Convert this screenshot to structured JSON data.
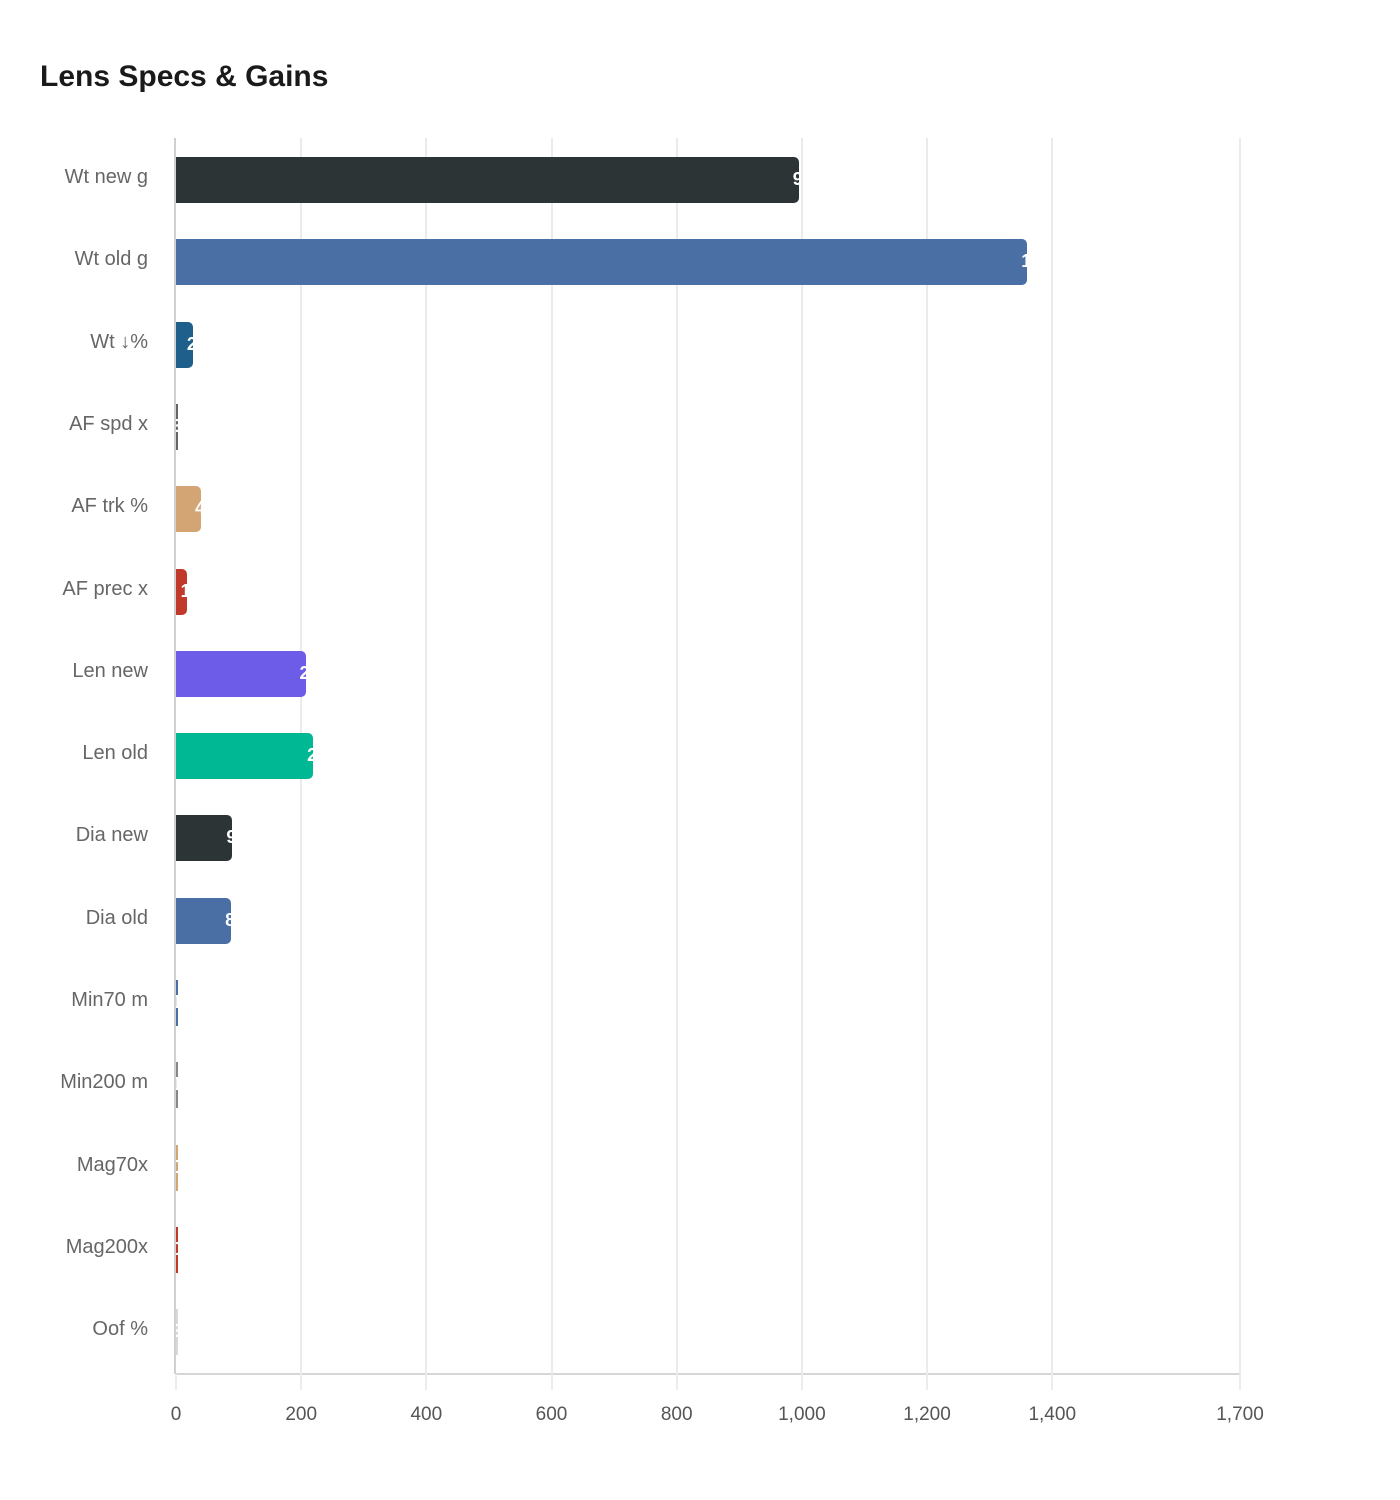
{
  "chart_data": {
    "type": "bar",
    "orientation": "horizontal",
    "title": "Lens Specs & Gains",
    "xlabel": "",
    "ylabel": "",
    "xlim": [
      0,
      1700
    ],
    "x_ticks": [
      "0",
      "200",
      "400",
      "600",
      "800",
      "1,000",
      "1,200",
      "1,400",
      "1,700"
    ],
    "grid": true,
    "legend": null,
    "categories": [
      "Wt new g",
      "Wt old g",
      "Wt ↓%",
      "AF spd x",
      "AF trk %",
      "AF prec x",
      "Len new",
      "Len old",
      "Dia new",
      "Dia old",
      "Min70 m",
      "Min200 m",
      "Mag70x",
      "Mag200x",
      "Oof %"
    ],
    "values": [
      995,
      1360,
      27,
      3,
      40,
      17,
      207,
      219,
      90,
      88,
      1,
      1.1,
      0.2,
      0.3,
      3
    ],
    "colors": [
      "#2d3436",
      "#4a6fa5",
      "#1f5f8b",
      "#666666",
      "#d4a574",
      "#c0392b",
      "#6c5ce7",
      "#00b894",
      "#2d3436",
      "#4a6fa5",
      "#4a6fa5",
      "#888888",
      "#d4a574",
      "#c0392b",
      "#d8d8d8"
    ]
  },
  "labels": {
    "title": "Lens Specs & Gains",
    "rows": [
      "Wt new g",
      "Wt old g",
      "Wt ↓%",
      "AF spd x",
      "AF trk %",
      "AF prec x",
      "Len new",
      "Len old",
      "Dia new",
      "Dia old",
      "Min70 m",
      "Min200 m",
      "Mag70x",
      "Mag200x",
      "Oof %"
    ],
    "values": [
      "995",
      "1360",
      "27",
      "3",
      "40",
      "17",
      "207",
      "219",
      "90",
      "88",
      "1",
      "1.1",
      "0.2",
      "0.3",
      "3"
    ],
    "ticks": [
      "0",
      "200",
      "400",
      "600",
      "800",
      "1,000",
      "1,200",
      "1,400",
      "1,700"
    ]
  }
}
